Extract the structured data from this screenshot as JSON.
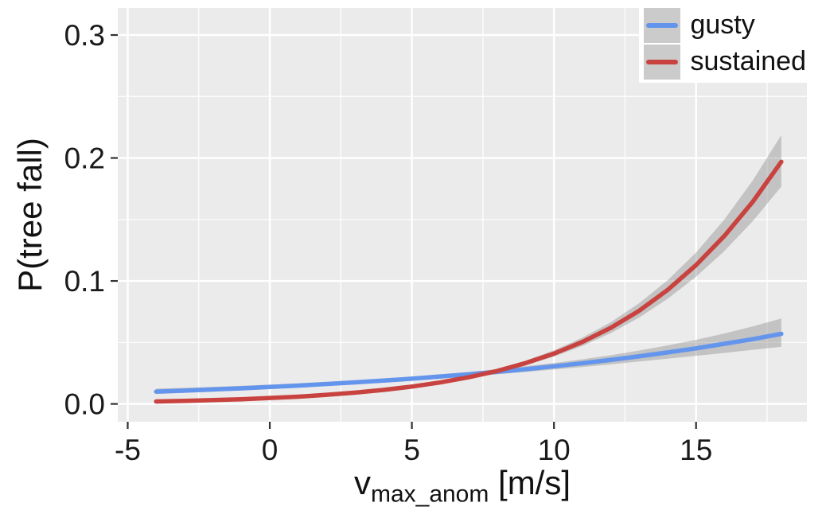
{
  "chart_data": {
    "type": "line",
    "title": "",
    "ylabel": "P(tree fall)",
    "xlabel_parts": {
      "main": "v",
      "sub": "max_anom",
      "unit": " [m/s]"
    },
    "x_ticks": [
      -5,
      0,
      5,
      10,
      15
    ],
    "x_tick_labels": [
      "-5",
      "0",
      "5",
      "10",
      "15"
    ],
    "y_ticks": [
      0.0,
      0.1,
      0.2,
      0.3
    ],
    "y_tick_labels": [
      "0.0",
      "0.1",
      "0.2",
      "0.3"
    ],
    "x_minor_ticks": [
      -2.5,
      2.5,
      7.5,
      12.5,
      17.5
    ],
    "y_minor_ticks": [
      0.05,
      0.15,
      0.25
    ],
    "xlim": [
      -5.35,
      18.9
    ],
    "ylim": [
      -0.0145,
      0.322
    ],
    "grid": true,
    "legend_position": "top-right",
    "panel_color": "#EBEBEB",
    "grid_color": "#FFFFFF",
    "tick_color": "#333333",
    "label_color": "#1A1A1A",
    "ribbon_color": "#8C8C8C",
    "ribbon_opacity": 0.42,
    "x": [
      -4,
      -3,
      -2,
      -1,
      0,
      1,
      2,
      3,
      4,
      5,
      6,
      7,
      8,
      9,
      10,
      11,
      12,
      13,
      14,
      15,
      16,
      17,
      18
    ],
    "series": [
      {
        "name": "gusty",
        "color": "#6495ED",
        "values": [
          0.01,
          0.0108,
          0.0118,
          0.0127,
          0.0138,
          0.0149,
          0.0162,
          0.0175,
          0.019,
          0.0205,
          0.0223,
          0.0241,
          0.0261,
          0.0282,
          0.0306,
          0.0331,
          0.0358,
          0.0387,
          0.0419,
          0.0452,
          0.0489,
          0.0527,
          0.057
        ],
        "lower": [
          0.0081,
          0.009,
          0.0099,
          0.011,
          0.0121,
          0.0133,
          0.0146,
          0.0159,
          0.0174,
          0.0189,
          0.0205,
          0.0223,
          0.0241,
          0.026,
          0.028,
          0.03,
          0.0322,
          0.0345,
          0.0368,
          0.0391,
          0.0415,
          0.044,
          0.0465
        ],
        "upper": [
          0.0124,
          0.0131,
          0.0139,
          0.0148,
          0.0157,
          0.0168,
          0.018,
          0.0193,
          0.0207,
          0.0223,
          0.0241,
          0.026,
          0.0282,
          0.0307,
          0.0333,
          0.0363,
          0.0396,
          0.0434,
          0.0476,
          0.0521,
          0.0573,
          0.0631,
          0.0695
        ]
      },
      {
        "name": "sustained",
        "color": "#C8433F",
        "values": [
          0.002,
          0.0025,
          0.0031,
          0.0038,
          0.0048,
          0.0059,
          0.0074,
          0.0092,
          0.0114,
          0.0141,
          0.0175,
          0.0217,
          0.0268,
          0.0332,
          0.0409,
          0.0504,
          0.0619,
          0.0758,
          0.0927,
          0.1129,
          0.1367,
          0.1645,
          0.1969
        ],
        "lower": [
          0.0017,
          0.0022,
          0.0028,
          0.0035,
          0.0044,
          0.0055,
          0.0069,
          0.0086,
          0.0107,
          0.0133,
          0.0165,
          0.0205,
          0.0252,
          0.0313,
          0.0385,
          0.0471,
          0.0576,
          0.0703,
          0.0855,
          0.1034,
          0.1244,
          0.1487,
          0.1767
        ],
        "upper": [
          0.0023,
          0.0028,
          0.0035,
          0.0042,
          0.0052,
          0.0065,
          0.008,
          0.0098,
          0.0122,
          0.015,
          0.0186,
          0.023,
          0.0285,
          0.0352,
          0.0436,
          0.0539,
          0.0665,
          0.0819,
          0.1006,
          0.1231,
          0.1501,
          0.1818,
          0.2186
        ]
      }
    ]
  }
}
